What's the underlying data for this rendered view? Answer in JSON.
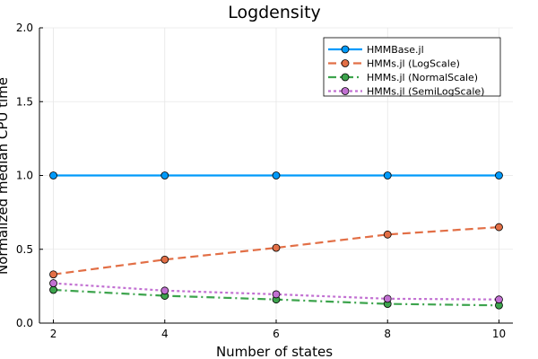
{
  "chart_data": {
    "type": "line",
    "title": "Logdensity",
    "xlabel": "Number of states",
    "ylabel": "Normalized median CPU time",
    "x": [
      2,
      4,
      6,
      8,
      10
    ],
    "xlim": [
      1.75,
      10.25
    ],
    "ylim": [
      0,
      2
    ],
    "xticks": [
      2,
      4,
      6,
      8,
      10
    ],
    "yticks": [
      0.0,
      0.5,
      1.0,
      1.5,
      2.0
    ],
    "xtick_labels": [
      "2",
      "4",
      "6",
      "8",
      "10"
    ],
    "ytick_labels": [
      "0.0",
      "0.5",
      "1.0",
      "1.5",
      "2.0"
    ],
    "grid": true,
    "legend_position": "top-right",
    "series": [
      {
        "name": "HMMBase.jl",
        "values": [
          1.0,
          1.0,
          1.0,
          1.0,
          1.0
        ],
        "color": "#009AFA",
        "dash": "solid"
      },
      {
        "name": "HMMs.jl (LogScale)",
        "values": [
          0.33,
          0.43,
          0.51,
          0.6,
          0.65
        ],
        "color": "#E26F46",
        "dash": "dash"
      },
      {
        "name": "HMMs.jl (NormalScale)",
        "values": [
          0.225,
          0.185,
          0.16,
          0.13,
          0.12
        ],
        "color": "#3DA44D",
        "dash": "dashdot"
      },
      {
        "name": "HMMs.jl (SemiLogScale)",
        "values": [
          0.27,
          0.22,
          0.195,
          0.165,
          0.16
        ],
        "color": "#C271D2",
        "dash": "dot"
      }
    ]
  }
}
